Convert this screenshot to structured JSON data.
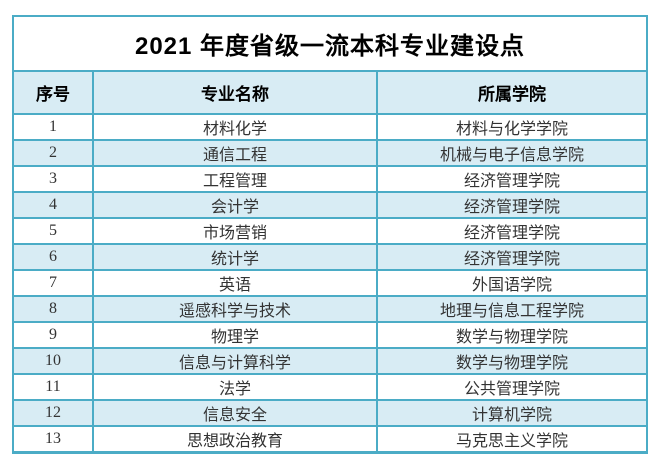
{
  "table": {
    "title": "2021 年度省级一流本科专业建设点",
    "columns": [
      "序号",
      "专业名称",
      "所属学院"
    ],
    "rows": [
      [
        "1",
        "材料化学",
        "材料与化学学院"
      ],
      [
        "2",
        "通信工程",
        "机械与电子信息学院"
      ],
      [
        "3",
        "工程管理",
        "经济管理学院"
      ],
      [
        "4",
        "会计学",
        "经济管理学院"
      ],
      [
        "5",
        "市场营销",
        "经济管理学院"
      ],
      [
        "6",
        "统计学",
        "经济管理学院"
      ],
      [
        "7",
        "英语",
        "外国语学院"
      ],
      [
        "8",
        "遥感科学与技术",
        "地理与信息工程学院"
      ],
      [
        "9",
        "物理学",
        "数学与物理学院"
      ],
      [
        "10",
        "信息与计算科学",
        "数学与物理学院"
      ],
      [
        "11",
        "法学",
        "公共管理学院"
      ],
      [
        "12",
        "信息安全",
        "计算机学院"
      ],
      [
        "13",
        "思想政治教育",
        "马克思主义学院"
      ]
    ]
  },
  "colors": {
    "border": "#4bacc6",
    "band_fill": "#d8ecf4",
    "title_text": "#000000",
    "body_text": "#333333",
    "background": "#ffffff"
  }
}
